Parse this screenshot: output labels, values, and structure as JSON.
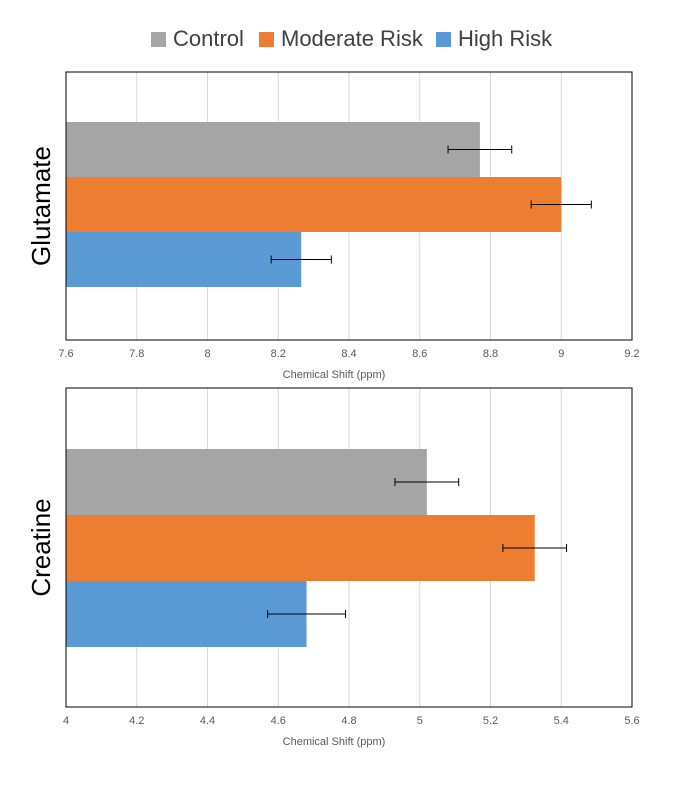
{
  "legend": [
    {
      "name": "Control",
      "color": "#A5A5A5"
    },
    {
      "name": "Moderate Risk",
      "color": "#ED7D31"
    },
    {
      "name": "High Risk",
      "color": "#5B9BD5"
    }
  ],
  "chart_data": [
    {
      "type": "bar",
      "orientation": "horizontal",
      "title": "",
      "category_label": "Glutamate",
      "xlabel": "Chemical Shift (ppm)",
      "xlim": [
        7.6,
        9.2
      ],
      "ticks": [
        "7.6",
        "7.8",
        "8",
        "8.2",
        "8.4",
        "8.6",
        "8.8",
        "9",
        "9.2"
      ],
      "series": [
        {
          "name": "Control",
          "value": 8.77,
          "error": 0.09
        },
        {
          "name": "Moderate Risk",
          "value": 9.0,
          "error": 0.085
        },
        {
          "name": "High Risk",
          "value": 8.265,
          "error": 0.085
        }
      ],
      "grid": true,
      "legend": "top"
    },
    {
      "type": "bar",
      "orientation": "horizontal",
      "title": "",
      "category_label": "Creatine",
      "xlabel": "Chemical Shift (ppm)",
      "xlim": [
        4.0,
        5.6
      ],
      "ticks": [
        "4",
        "4.2",
        "4.4",
        "4.6",
        "4.8",
        "5",
        "5.2",
        "5.4",
        "5.6"
      ],
      "series": [
        {
          "name": "Control",
          "value": 5.02,
          "error": 0.09
        },
        {
          "name": "Moderate Risk",
          "value": 5.325,
          "error": 0.09
        },
        {
          "name": "High Risk",
          "value": 4.68,
          "error": 0.11
        }
      ],
      "grid": true,
      "legend": "top"
    }
  ]
}
